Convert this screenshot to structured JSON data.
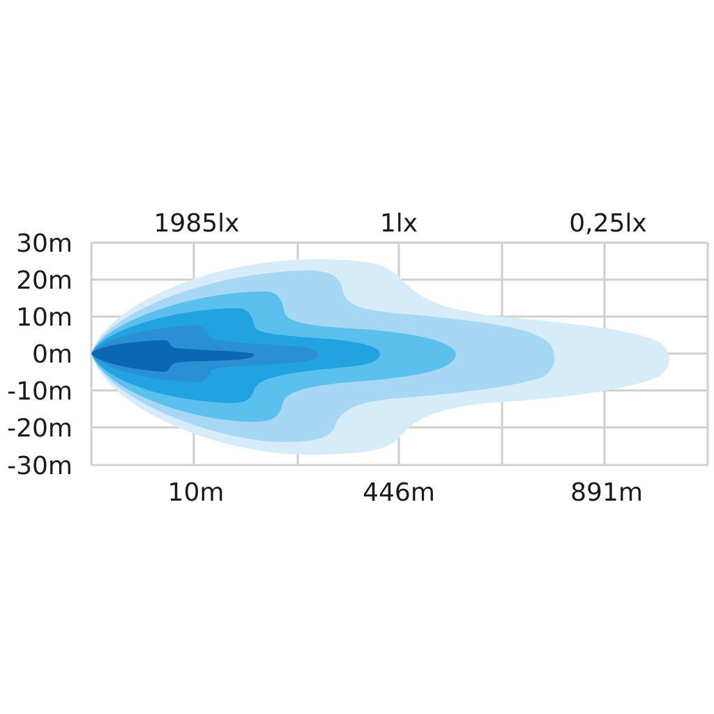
{
  "chart_data": {
    "type": "contour",
    "description_type": "beam pattern",
    "y_tick_labels": [
      "30m",
      "20m",
      "10m",
      "0m",
      "-10m",
      "-20m",
      "-30m"
    ],
    "ylim": [
      -30,
      30
    ],
    "top_labels": [
      "1985lx",
      "1lx",
      "0,25lx"
    ],
    "bottom_labels": [
      "10m",
      "446m",
      "891m"
    ],
    "grid": true,
    "zone_colors": [
      "#d6ecf9",
      "#a6d7f3",
      "#5cc0ee",
      "#20a3df",
      "#2b8fd3",
      "#0b67b3"
    ]
  }
}
